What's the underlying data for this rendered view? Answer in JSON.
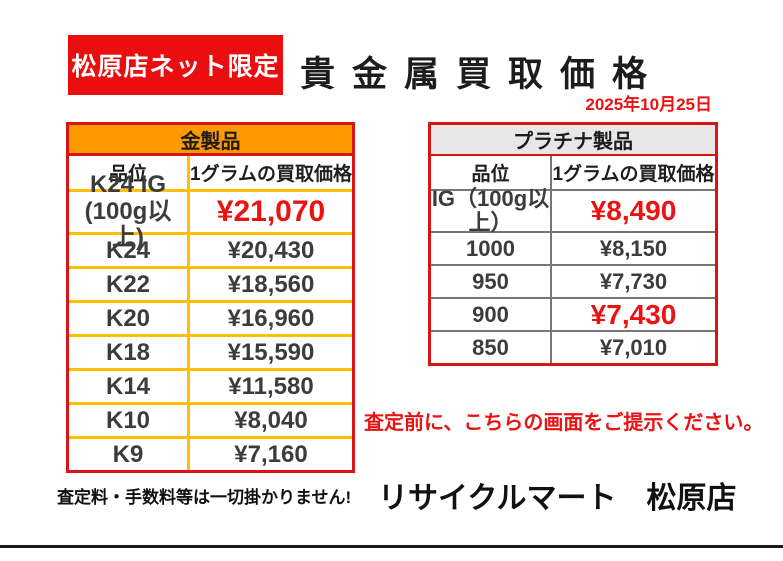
{
  "banner": {
    "label": "松原店ネット限定"
  },
  "title": "貴金属買取価格",
  "date": "2025年10月25日",
  "colors": {
    "banner_red": "#ea0e10",
    "table_border_red": "#d81414",
    "gold_header_bg": "#ff9900",
    "gold_inner_border": "#ffc000",
    "platinum_header_bg": "#e7e7e7",
    "platinum_inner_border": "#767676",
    "price_highlight_red": "#ec1212",
    "text_dark": "#3c3c3e"
  },
  "gold_table": {
    "header": "金製品",
    "columns": {
      "grade": "品位",
      "price": "1グラムの買取価格"
    },
    "rows": [
      {
        "grade_line1": "K24 IG",
        "grade_line2": "(100g以上)",
        "price": "¥21,070",
        "highlight": true
      },
      {
        "grade": "K24",
        "price": "¥20,430"
      },
      {
        "grade": "K22",
        "price": "¥18,560"
      },
      {
        "grade": "K20",
        "price": "¥16,960"
      },
      {
        "grade": "K18",
        "price": "¥15,590"
      },
      {
        "grade": "K14",
        "price": "¥11,580"
      },
      {
        "grade": "K10",
        "price": "¥8,040"
      },
      {
        "grade": "K9",
        "price": "¥7,160"
      }
    ]
  },
  "platinum_table": {
    "header": "プラチナ製品",
    "columns": {
      "grade": "品位",
      "price": "1グラムの買取価格"
    },
    "rows": [
      {
        "grade": "IG（100g以上）",
        "price": "¥8,490",
        "highlight": true
      },
      {
        "grade": "1000",
        "price": "¥8,150"
      },
      {
        "grade": "950",
        "price": "¥7,730"
      },
      {
        "grade": "900",
        "price": "¥7,430",
        "highlight": true
      },
      {
        "grade": "850",
        "price": "¥7,010"
      }
    ]
  },
  "notice": "査定前に、こちらの画面をご提示ください。",
  "footnote": "査定料・手数料等は一切掛かりません!",
  "store_name": "リサイクルマート　松原店"
}
